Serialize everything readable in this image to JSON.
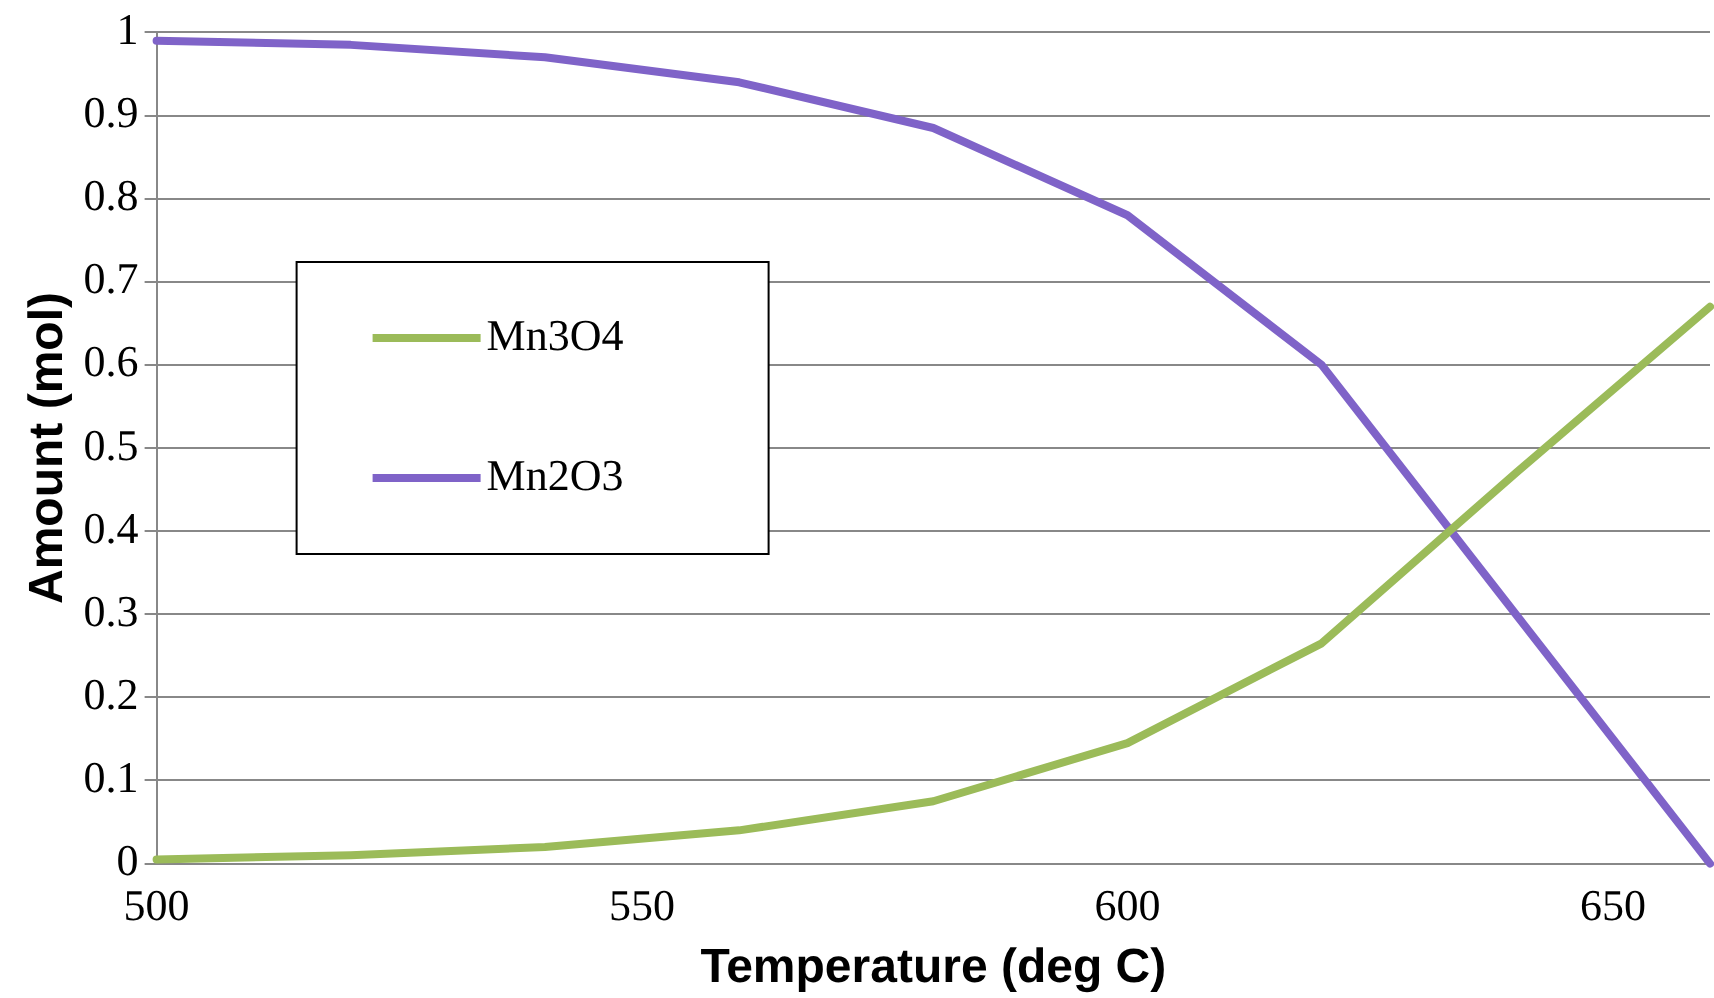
{
  "chart_data": {
    "type": "line",
    "xlabel": "Temperature (deg C)",
    "ylabel": "Amount (mol)",
    "x": [
      500,
      520,
      540,
      560,
      580,
      600,
      620,
      640,
      660
    ],
    "series": [
      {
        "name": "Mn3O4",
        "color": "#9bbb59",
        "values": [
          0.005,
          0.01,
          0.02,
          0.04,
          0.075,
          0.145,
          0.265,
          0.47,
          0.67
        ]
      },
      {
        "name": "Mn2O3",
        "color": "#7f63c8",
        "values": [
          0.99,
          0.985,
          0.97,
          0.94,
          0.885,
          0.78,
          0.6,
          0.3,
          0
        ]
      }
    ],
    "xlim": [
      500,
      660
    ],
    "xticks": [
      500,
      550,
      600,
      650
    ],
    "ylim": [
      0,
      1
    ],
    "yticks": [
      0,
      0.1,
      0.2,
      0.3,
      0.4,
      0.5,
      0.6,
      0.7,
      0.8,
      0.9,
      1
    ],
    "grid": "y",
    "legend": "left",
    "marker": "none",
    "line_style": "solid"
  }
}
